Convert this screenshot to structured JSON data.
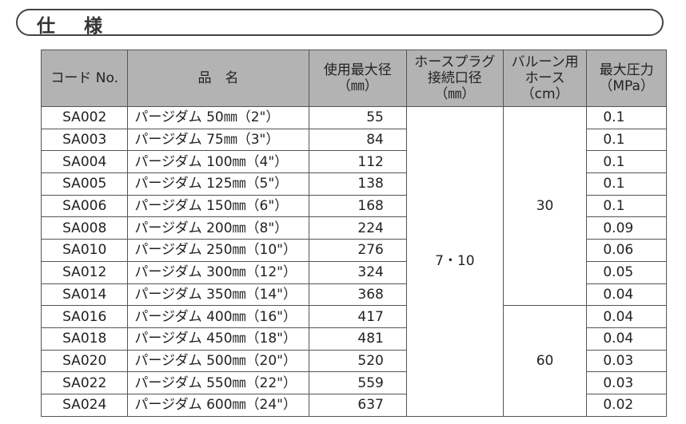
{
  "title": "仕 様",
  "headers": {
    "code": "コード No.",
    "name": "品　名",
    "max_dia": "使用最大径\n（㎜）",
    "plug": "ホースプラグ\n接続口径\n（㎜）",
    "hose": "バルーン用\nホース\n（cm）",
    "pressure": "最大圧力\n（MPa）"
  },
  "plug_value": "7・10",
  "hose_values": [
    "30",
    "60"
  ],
  "rows": [
    {
      "code": "SA002",
      "name": "パージダム 50㎜（2\"）",
      "dia": "55",
      "p": "0.1"
    },
    {
      "code": "SA003",
      "name": "パージダム 75㎜（3\"）",
      "dia": "84",
      "p": "0.1"
    },
    {
      "code": "SA004",
      "name": "パージダム 100㎜（4\"）",
      "dia": "112",
      "p": "0.1"
    },
    {
      "code": "SA005",
      "name": "パージダム 125㎜（5\"）",
      "dia": "138",
      "p": "0.1"
    },
    {
      "code": "SA006",
      "name": "パージダム 150㎜（6\"）",
      "dia": "168",
      "p": "0.1"
    },
    {
      "code": "SA008",
      "name": "パージダム 200㎜（8\"）",
      "dia": "224",
      "p": "0.09"
    },
    {
      "code": "SA010",
      "name": "パージダム 250㎜（10\"）",
      "dia": "276",
      "p": "0.06"
    },
    {
      "code": "SA012",
      "name": "パージダム 300㎜（12\"）",
      "dia": "324",
      "p": "0.05"
    },
    {
      "code": "SA014",
      "name": "パージダム 350㎜（14\"）",
      "dia": "368",
      "p": "0.04"
    },
    {
      "code": "SA016",
      "name": "パージダム 400㎜（16\"）",
      "dia": "417",
      "p": "0.04"
    },
    {
      "code": "SA018",
      "name": "パージダム 450㎜（18\"）",
      "dia": "481",
      "p": "0.04"
    },
    {
      "code": "SA020",
      "name": "パージダム 500㎜（20\"）",
      "dia": "520",
      "p": "0.03"
    },
    {
      "code": "SA022",
      "name": "パージダム 550㎜（22\"）",
      "dia": "559",
      "p": "0.03"
    },
    {
      "code": "SA024",
      "name": "パージダム 600㎜（24\"）",
      "dia": "637",
      "p": "0.02"
    }
  ]
}
